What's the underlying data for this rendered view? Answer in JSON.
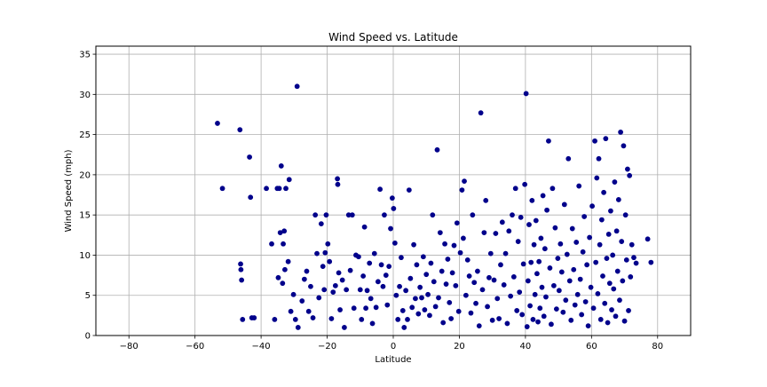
{
  "chart_data": {
    "type": "scatter",
    "title": "Wind Speed vs. Latitude",
    "xlabel": "Latitude",
    "ylabel": "Wind Speed (mph)",
    "xlim": [
      -90,
      90
    ],
    "ylim": [
      0,
      36
    ],
    "xticks": [
      -80,
      -60,
      -40,
      -20,
      0,
      20,
      40,
      60,
      80
    ],
    "yticks": [
      0,
      5,
      10,
      15,
      20,
      25,
      30,
      35
    ],
    "grid": true,
    "marker_color": "#00008B",
    "marker_edge_color": "#00008B",
    "series": [
      {
        "points": [
          [
            -53.2,
            26.4
          ],
          [
            -51.7,
            18.3
          ],
          [
            -46.4,
            25.6
          ],
          [
            -46.2,
            8.9
          ],
          [
            -46.1,
            8.2
          ],
          [
            -45.9,
            6.9
          ],
          [
            -45.6,
            2.0
          ],
          [
            -43.5,
            22.2
          ],
          [
            -43.2,
            17.2
          ],
          [
            -42.8,
            2.2
          ],
          [
            -42.1,
            2.2
          ],
          [
            -38.4,
            18.3
          ],
          [
            -36.8,
            11.4
          ],
          [
            -35.9,
            2.0
          ],
          [
            -35.1,
            18.3
          ],
          [
            -34.8,
            7.2
          ],
          [
            -34.5,
            18.3
          ],
          [
            -34.2,
            12.8
          ],
          [
            -33.9,
            21.1
          ],
          [
            -33.5,
            6.5
          ],
          [
            -33.3,
            11.4
          ],
          [
            -33.0,
            13.0
          ],
          [
            -32.8,
            8.2
          ],
          [
            -32.5,
            18.3
          ],
          [
            -31.8,
            9.2
          ],
          [
            -31.5,
            19.4
          ],
          [
            -31.0,
            3.0
          ],
          [
            -30.2,
            5.1
          ],
          [
            -29.6,
            2.0
          ],
          [
            -29.1,
            31.0
          ],
          [
            -28.8,
            1.0
          ],
          [
            -27.6,
            4.3
          ],
          [
            -26.9,
            7.0
          ],
          [
            -26.2,
            8.0
          ],
          [
            -25.6,
            3.0
          ],
          [
            -25.0,
            6.1
          ],
          [
            -24.3,
            2.2
          ],
          [
            -23.6,
            15.0
          ],
          [
            -23.1,
            10.2
          ],
          [
            -22.5,
            4.7
          ],
          [
            -21.8,
            13.9
          ],
          [
            -21.3,
            8.6
          ],
          [
            -20.9,
            5.7
          ],
          [
            -20.6,
            10.3
          ],
          [
            -20.3,
            15.0
          ],
          [
            -19.8,
            11.4
          ],
          [
            -19.3,
            9.2
          ],
          [
            -18.7,
            2.1
          ],
          [
            -18.2,
            5.4
          ],
          [
            -17.5,
            6.2
          ],
          [
            -16.9,
            19.5
          ],
          [
            -16.8,
            18.8
          ],
          [
            -16.5,
            7.8
          ],
          [
            -16.1,
            3.2
          ],
          [
            -15.4,
            6.9
          ],
          [
            -14.8,
            1.0
          ],
          [
            -14.2,
            5.7
          ],
          [
            -13.5,
            15.0
          ],
          [
            -13.0,
            8.1
          ],
          [
            -12.4,
            15.0
          ],
          [
            -11.9,
            3.4
          ],
          [
            -11.3,
            10.0
          ],
          [
            -10.5,
            9.8
          ],
          [
            -10.0,
            5.7
          ],
          [
            -9.6,
            2.0
          ],
          [
            -9.1,
            7.4
          ],
          [
            -8.7,
            13.5
          ],
          [
            -8.3,
            3.4
          ],
          [
            -7.9,
            5.6
          ],
          [
            -7.2,
            9.0
          ],
          [
            -6.8,
            4.6
          ],
          [
            -6.3,
            1.5
          ],
          [
            -5.7,
            10.2
          ],
          [
            -5.2,
            3.5
          ],
          [
            -4.6,
            6.7
          ],
          [
            -4.0,
            18.2
          ],
          [
            -3.6,
            8.8
          ],
          [
            -3.1,
            6.1
          ],
          [
            -2.7,
            15.0
          ],
          [
            -2.2,
            7.5
          ],
          [
            -1.8,
            3.8
          ],
          [
            -1.3,
            8.6
          ],
          [
            -0.8,
            13.3
          ],
          [
            -0.3,
            17.1
          ],
          [
            0.1,
            15.8
          ],
          [
            0.5,
            11.5
          ],
          [
            0.9,
            5.0
          ],
          [
            1.4,
            2.0
          ],
          [
            1.9,
            6.1
          ],
          [
            2.4,
            9.7
          ],
          [
            2.9,
            3.1
          ],
          [
            3.3,
            1.0
          ],
          [
            3.8,
            5.6
          ],
          [
            4.3,
            2.0
          ],
          [
            4.8,
            18.1
          ],
          [
            5.2,
            7.1
          ],
          [
            5.7,
            3.5
          ],
          [
            6.2,
            11.3
          ],
          [
            6.7,
            4.6
          ],
          [
            7.1,
            8.8
          ],
          [
            7.6,
            2.7
          ],
          [
            8.1,
            6.0
          ],
          [
            8.6,
            4.7
          ],
          [
            9.1,
            9.8
          ],
          [
            9.5,
            3.2
          ],
          [
            10.0,
            7.6
          ],
          [
            10.5,
            5.1
          ],
          [
            11.0,
            2.5
          ],
          [
            11.4,
            9.0
          ],
          [
            11.9,
            15.0
          ],
          [
            12.3,
            6.7
          ],
          [
            12.8,
            3.6
          ],
          [
            13.3,
            23.1
          ],
          [
            13.7,
            4.7
          ],
          [
            14.2,
            12.8
          ],
          [
            14.7,
            8.0
          ],
          [
            15.1,
            1.6
          ],
          [
            15.6,
            11.4
          ],
          [
            16.0,
            6.4
          ],
          [
            16.5,
            9.5
          ],
          [
            17.0,
            4.1
          ],
          [
            17.5,
            2.1
          ],
          [
            17.9,
            7.8
          ],
          [
            18.4,
            11.2
          ],
          [
            18.9,
            6.2
          ],
          [
            19.3,
            14.0
          ],
          [
            19.8,
            3.0
          ],
          [
            20.3,
            10.3
          ],
          [
            20.8,
            18.1
          ],
          [
            21.2,
            12.1
          ],
          [
            21.5,
            19.2
          ],
          [
            22.0,
            5.0
          ],
          [
            22.5,
            9.4
          ],
          [
            23.0,
            7.4
          ],
          [
            23.5,
            2.8
          ],
          [
            24.0,
            15.0
          ],
          [
            24.5,
            6.6
          ],
          [
            25.0,
            4.0
          ],
          [
            25.5,
            8.0
          ],
          [
            26.0,
            1.2
          ],
          [
            26.5,
            27.7
          ],
          [
            27.0,
            5.7
          ],
          [
            27.5,
            12.8
          ],
          [
            28.0,
            16.8
          ],
          [
            28.5,
            3.6
          ],
          [
            29.0,
            7.2
          ],
          [
            29.5,
            10.2
          ],
          [
            30.0,
            1.9
          ],
          [
            30.5,
            6.9
          ],
          [
            31.0,
            12.7
          ],
          [
            31.5,
            4.6
          ],
          [
            32.0,
            2.1
          ],
          [
            32.5,
            8.8
          ],
          [
            33.0,
            14.1
          ],
          [
            33.5,
            6.3
          ],
          [
            34.0,
            10.2
          ],
          [
            34.5,
            1.5
          ],
          [
            35.0,
            13.0
          ],
          [
            35.5,
            4.9
          ],
          [
            36.0,
            15.0
          ],
          [
            36.5,
            7.3
          ],
          [
            37.0,
            18.3
          ],
          [
            37.4,
            3.1
          ],
          [
            37.8,
            11.7
          ],
          [
            38.2,
            5.4
          ],
          [
            38.6,
            14.7
          ],
          [
            39.0,
            2.6
          ],
          [
            39.4,
            8.9
          ],
          [
            39.8,
            18.8
          ],
          [
            40.2,
            30.1
          ],
          [
            40.5,
            1.1
          ],
          [
            40.8,
            6.8
          ],
          [
            41.1,
            13.8
          ],
          [
            41.4,
            3.7
          ],
          [
            41.7,
            9.1
          ],
          [
            42.0,
            16.8
          ],
          [
            42.3,
            2.0
          ],
          [
            42.6,
            11.3
          ],
          [
            42.9,
            5.1
          ],
          [
            43.2,
            14.3
          ],
          [
            43.5,
            7.7
          ],
          [
            43.8,
            1.7
          ],
          [
            44.1,
            9.2
          ],
          [
            44.4,
            3.4
          ],
          [
            44.7,
            12.1
          ],
          [
            45.0,
            6.0
          ],
          [
            45.3,
            17.4
          ],
          [
            45.6,
            2.4
          ],
          [
            45.9,
            10.8
          ],
          [
            46.2,
            4.8
          ],
          [
            46.5,
            15.6
          ],
          [
            47.0,
            24.2
          ],
          [
            47.4,
            8.4
          ],
          [
            47.8,
            1.4
          ],
          [
            48.2,
            18.3
          ],
          [
            48.6,
            6.2
          ],
          [
            49.0,
            13.4
          ],
          [
            49.4,
            3.3
          ],
          [
            49.8,
            9.6
          ],
          [
            50.2,
            5.6
          ],
          [
            50.6,
            11.4
          ],
          [
            51.0,
            7.9
          ],
          [
            51.4,
            2.9
          ],
          [
            51.8,
            16.3
          ],
          [
            52.2,
            4.4
          ],
          [
            52.6,
            10.1
          ],
          [
            53.0,
            22.0
          ],
          [
            53.4,
            6.8
          ],
          [
            53.8,
            1.9
          ],
          [
            54.2,
            13.3
          ],
          [
            54.6,
            8.2
          ],
          [
            55.0,
            3.8
          ],
          [
            55.4,
            11.6
          ],
          [
            55.8,
            5.1
          ],
          [
            56.2,
            18.6
          ],
          [
            56.6,
            7.0
          ],
          [
            57.0,
            2.6
          ],
          [
            57.4,
            10.4
          ],
          [
            57.8,
            14.8
          ],
          [
            58.2,
            4.2
          ],
          [
            58.6,
            8.8
          ],
          [
            59.0,
            1.2
          ],
          [
            59.4,
            12.2
          ],
          [
            59.8,
            6.0
          ],
          [
            60.2,
            16.1
          ],
          [
            60.6,
            3.4
          ],
          [
            61.0,
            24.2
          ],
          [
            61.3,
            9.1
          ],
          [
            61.6,
            19.6
          ],
          [
            61.9,
            5.2
          ],
          [
            62.2,
            22.0
          ],
          [
            62.5,
            11.3
          ],
          [
            62.8,
            2.0
          ],
          [
            63.1,
            14.4
          ],
          [
            63.4,
            7.4
          ],
          [
            63.7,
            17.8
          ],
          [
            64.0,
            4.0
          ],
          [
            64.3,
            24.5
          ],
          [
            64.6,
            9.6
          ],
          [
            64.9,
            1.6
          ],
          [
            65.2,
            12.6
          ],
          [
            65.5,
            6.5
          ],
          [
            65.8,
            15.5
          ],
          [
            66.1,
            3.2
          ],
          [
            66.4,
            10.0
          ],
          [
            66.7,
            5.8
          ],
          [
            67.0,
            19.1
          ],
          [
            67.3,
            2.4
          ],
          [
            67.6,
            13.0
          ],
          [
            67.9,
            8.0
          ],
          [
            68.2,
            16.9
          ],
          [
            68.5,
            4.4
          ],
          [
            68.8,
            25.3
          ],
          [
            69.1,
            11.7
          ],
          [
            69.4,
            6.8
          ],
          [
            69.7,
            23.6
          ],
          [
            70.0,
            1.8
          ],
          [
            70.3,
            15.0
          ],
          [
            70.6,
            9.4
          ],
          [
            70.9,
            20.7
          ],
          [
            71.2,
            3.1
          ],
          [
            71.5,
            19.9
          ],
          [
            71.8,
            7.3
          ],
          [
            72.2,
            11.3
          ],
          [
            72.8,
            9.7
          ],
          [
            73.5,
            9.0
          ],
          [
            77.0,
            12.0
          ],
          [
            78.0,
            9.1
          ]
        ]
      }
    ]
  }
}
